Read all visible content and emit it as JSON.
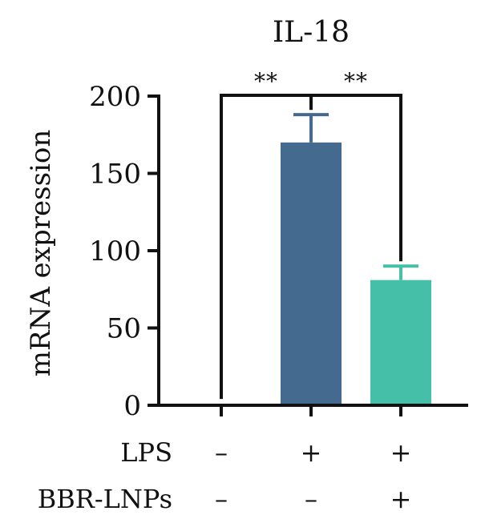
{
  "chart_data": {
    "type": "bar",
    "title": "IL-18",
    "ylabel": "mRNA expression",
    "xlabel": "",
    "ylim": [
      0,
      200
    ],
    "yticks": [
      0,
      50,
      100,
      150,
      200
    ],
    "grid": false,
    "bars": [
      {
        "value": 1,
        "error": 0,
        "color": "#e0736e"
      },
      {
        "value": 170,
        "error": 18,
        "color": "#446a90"
      },
      {
        "value": 81,
        "error": 9,
        "color": "#45bfa7"
      }
    ],
    "conditions": [
      {
        "label": "LPS",
        "signs": [
          "–",
          "+",
          "+"
        ]
      },
      {
        "label": "BBR-LNPs",
        "signs": [
          "–",
          "–",
          "+"
        ]
      }
    ],
    "significance": [
      {
        "from": 0,
        "to": 1,
        "label": "**"
      },
      {
        "from": 1,
        "to": 2,
        "label": "**"
      }
    ],
    "error_colors": [
      "#e0736e",
      "#446a90",
      "#45bfa7"
    ]
  }
}
